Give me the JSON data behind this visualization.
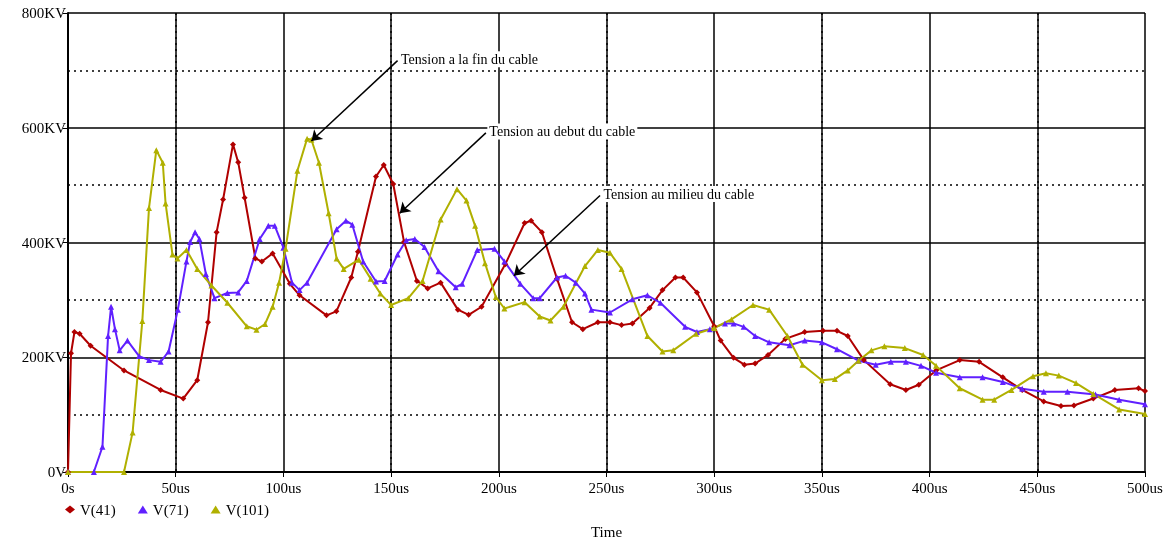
{
  "chart_data": {
    "type": "line",
    "xlabel": "Time",
    "xlim": [
      0,
      500
    ],
    "xticks": [
      {
        "value": 0,
        "label": "0s"
      },
      {
        "value": 50,
        "label": "50us"
      },
      {
        "value": 100,
        "label": "100us"
      },
      {
        "value": 150,
        "label": "150us"
      },
      {
        "value": 200,
        "label": "200us"
      },
      {
        "value": 250,
        "label": "250us"
      },
      {
        "value": 300,
        "label": "300us"
      },
      {
        "value": 350,
        "label": "350us"
      },
      {
        "value": 400,
        "label": "400us"
      },
      {
        "value": 450,
        "label": "450us"
      },
      {
        "value": 500,
        "label": "500us"
      }
    ],
    "ylim": [
      0,
      800
    ],
    "yticks": [
      {
        "value": 0,
        "label": "0V"
      },
      {
        "value": 200,
        "label": "200KV"
      },
      {
        "value": 400,
        "label": "400KV"
      },
      {
        "value": 600,
        "label": "600KV"
      },
      {
        "value": 800,
        "label": "800KV"
      }
    ],
    "grid": true,
    "legend": "bottom left",
    "series": [
      {
        "name": "V(41)",
        "color": "#b00000",
        "marker": "diamond",
        "x": [
          0,
          1.4,
          3,
          5.4,
          10.5,
          26,
          43,
          53.5,
          60,
          65,
          69,
          72,
          76.6,
          79,
          82,
          87,
          90,
          95,
          103,
          107.5,
          120,
          124.6,
          131.5,
          134.6,
          143,
          146.6,
          151,
          156,
          162,
          167,
          173,
          181,
          186,
          192,
          203,
          212,
          215,
          220,
          227,
          234,
          239,
          246,
          251.6,
          257,
          262,
          270,
          276,
          282,
          285.6,
          292,
          300,
          303,
          309,
          314,
          319,
          325,
          333,
          342,
          350.5,
          357,
          362,
          369.5,
          381.7,
          389,
          395,
          403,
          414,
          423,
          434,
          443,
          453,
          461,
          467,
          476,
          486,
          497,
          500
        ],
        "values": [
          0,
          207,
          244,
          241,
          220,
          177,
          143,
          128,
          160,
          261,
          418,
          475,
          571,
          540,
          478,
          372,
          367,
          381,
          328,
          308,
          273,
          280,
          339,
          384,
          515,
          535,
          502,
          401,
          333,
          320,
          330,
          283,
          274,
          288,
          362,
          434,
          438,
          418,
          337,
          261,
          249,
          261,
          261,
          256,
          259,
          286,
          317,
          339,
          339,
          313,
          254,
          229,
          199,
          187,
          189,
          204,
          232,
          244,
          246,
          246,
          237,
          195,
          153,
          143,
          152,
          177,
          195,
          192,
          165,
          143,
          123,
          115,
          116,
          128,
          143,
          146,
          141
        ]
      },
      {
        "name": "V(71)",
        "color": "#6020ff",
        "marker": "triangle",
        "x": [
          0,
          12,
          16,
          18.6,
          20,
          21.8,
          24,
          27.6,
          33,
          37.6,
          43,
          46.7,
          51,
          55,
          56.7,
          59,
          61,
          64,
          68,
          74,
          79,
          83,
          89,
          93,
          96,
          100,
          104,
          107.5,
          111,
          124.7,
          129,
          132,
          137,
          143,
          147,
          153,
          157,
          161,
          165.5,
          172,
          180,
          183,
          190,
          198,
          202.6,
          210,
          216,
          219,
          227,
          231,
          235.7,
          240,
          243,
          251.6,
          262,
          269,
          275,
          286.5,
          292,
          298,
          305,
          309,
          313.7,
          319,
          325.5,
          335,
          342,
          350,
          357,
          367,
          375,
          382,
          389,
          396,
          403,
          414,
          424.6,
          434,
          443,
          453,
          464,
          477,
          488,
          500
        ],
        "values": [
          0,
          0,
          44,
          237,
          288,
          249,
          212,
          229,
          202,
          195,
          192,
          210,
          283,
          367,
          401,
          418,
          406,
          345,
          303,
          312,
          313,
          333,
          406,
          429,
          429,
          391,
          330,
          317,
          330,
          423,
          438,
          431,
          367,
          332,
          333,
          379,
          404,
          406,
          392,
          350,
          322,
          328,
          387,
          389,
          367,
          328,
          303,
          303,
          339,
          342,
          330,
          311,
          283,
          278,
          301,
          308,
          295,
          253,
          244,
          249,
          259,
          259,
          253,
          237,
          226,
          221,
          229,
          226,
          214,
          194,
          187,
          192,
          192,
          185,
          173,
          165,
          165,
          157,
          145,
          140,
          140,
          135,
          126,
          118
        ]
      },
      {
        "name": "V(101)",
        "color": "#b0b000",
        "marker": "triangle",
        "x": [
          0,
          26,
          30,
          34.5,
          37.6,
          41,
          44,
          45.3,
          48.5,
          50.8,
          55,
          60,
          66.6,
          74,
          83,
          87.5,
          91.5,
          95,
          98,
          101,
          106.5,
          111,
          113,
          116.5,
          121,
          124.7,
          128,
          135,
          140.5,
          145,
          150,
          158,
          164.6,
          173,
          180.6,
          185,
          189,
          193.6,
          198.6,
          202.6,
          212,
          219,
          224,
          230,
          240,
          246,
          251.6,
          257,
          269,
          276,
          281,
          291.6,
          300,
          308,
          318,
          325.5,
          334,
          341,
          350,
          356,
          362,
          367,
          373,
          379,
          388.5,
          397,
          403,
          414,
          424.6,
          430,
          438,
          448,
          454,
          460,
          468,
          476,
          488,
          500
        ],
        "values": [
          0,
          0,
          69,
          263,
          460,
          561,
          539,
          468,
          379,
          372,
          387,
          354,
          325,
          295,
          254,
          248,
          258,
          288,
          330,
          389,
          525,
          581,
          579,
          539,
          451,
          372,
          354,
          370,
          337,
          311,
          291,
          303,
          333,
          440,
          493,
          473,
          429,
          364,
          305,
          285,
          296,
          271,
          264,
          288,
          359,
          387,
          382,
          354,
          237,
          210,
          212,
          241,
          251,
          266,
          291,
          283,
          237,
          187,
          160,
          162,
          177,
          194,
          212,
          219,
          216,
          204,
          185,
          146,
          126,
          126,
          143,
          167,
          172,
          168,
          155,
          136,
          109,
          101
        ]
      }
    ],
    "annotations": [
      {
        "text": "Tension a la fin du cable",
        "x": 113,
        "y": 577
      },
      {
        "text": "Tension au debut du cable",
        "x": 154,
        "y": 451
      },
      {
        "text": "Tension au milieu du cable",
        "x": 207,
        "y": 342
      }
    ]
  }
}
